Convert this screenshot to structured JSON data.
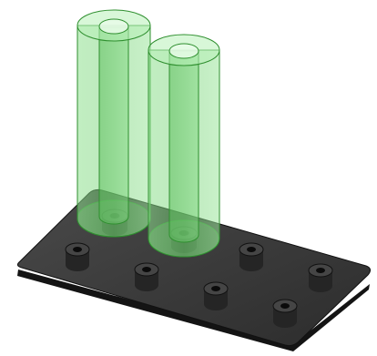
{
  "colors": {
    "background": "#ffffff",
    "plate_top": "#3a3a3a",
    "plate_edge": "#1a1a1a",
    "standoff": "#2b2b2b",
    "standoff_top": "#444444",
    "standoff_hole": "#0d0d0d",
    "tube_fill": "#7fd77f",
    "tube_stroke": "#2f8f2f"
  },
  "scene": {
    "tubes": [
      {
        "name": "tube-left"
      },
      {
        "name": "tube-right"
      }
    ],
    "standoffs": [
      {
        "name": "standoff-under-left-tube"
      },
      {
        "name": "standoff-under-right-tube"
      },
      {
        "name": "standoff-front-1"
      },
      {
        "name": "standoff-front-2"
      },
      {
        "name": "standoff-front-3"
      },
      {
        "name": "standoff-back-right-1"
      },
      {
        "name": "standoff-back-right-2"
      },
      {
        "name": "standoff-front-right"
      }
    ]
  }
}
